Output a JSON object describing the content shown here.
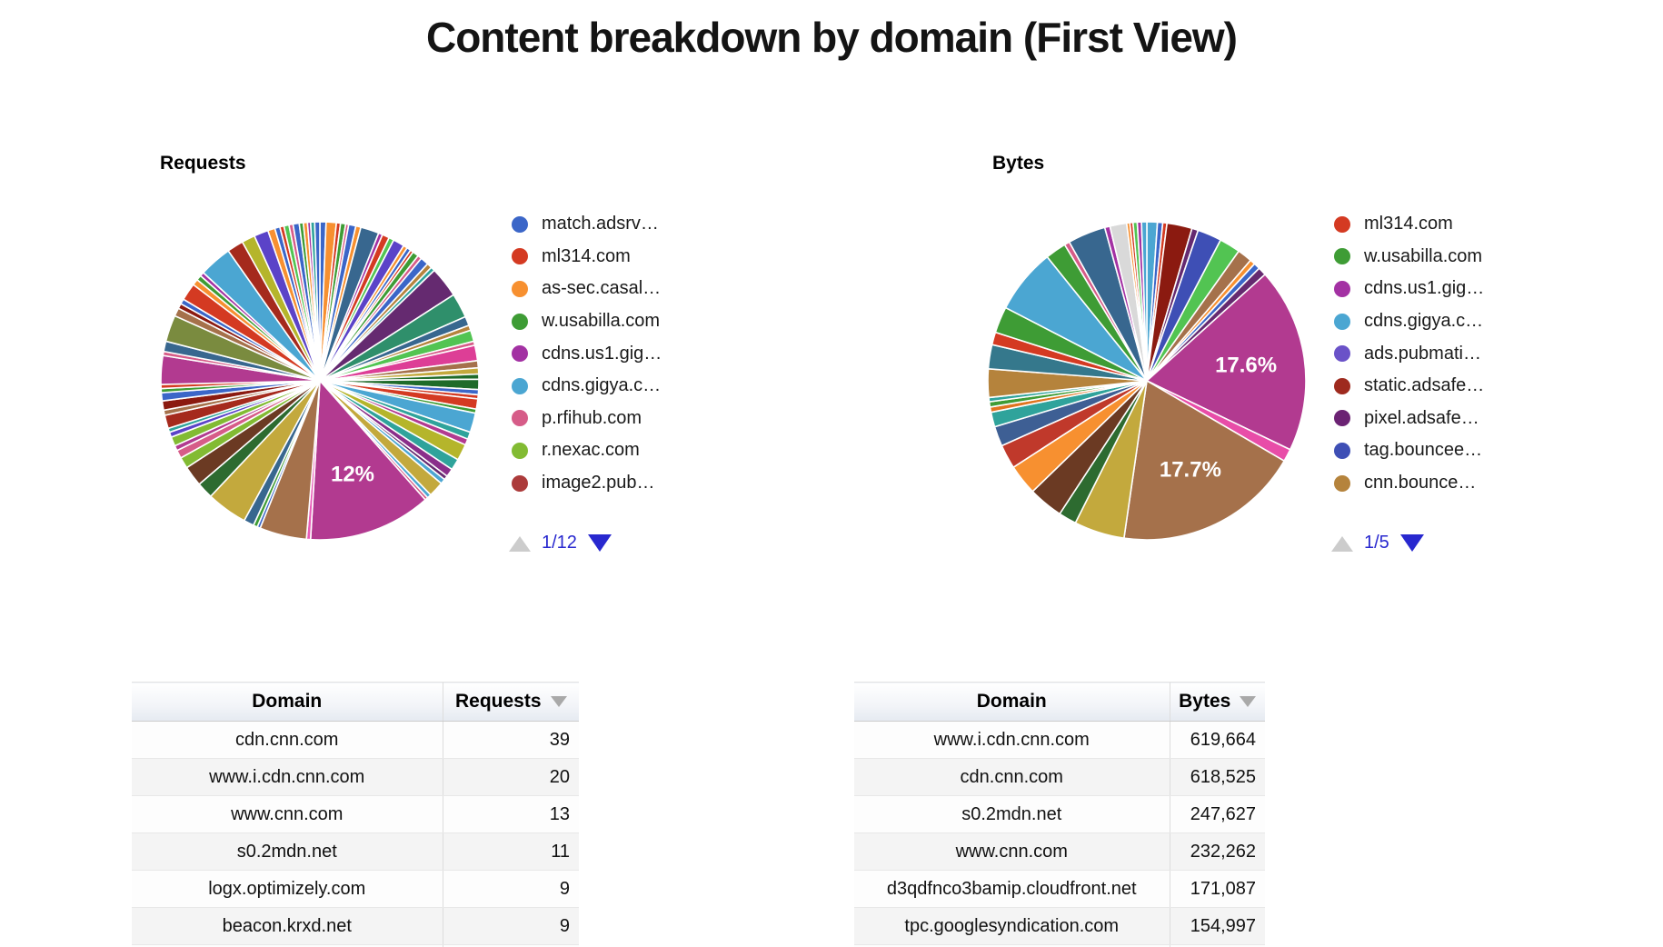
{
  "title": "Content breakdown by domain (First View)",
  "chart_data": [
    {
      "type": "pie",
      "title": "Requests",
      "labeled_slices": [
        {
          "label": "12%",
          "value_pct": 12
        }
      ],
      "legend": {
        "page": "1/12",
        "items": [
          {
            "label": "match.adsrv…",
            "color": "#3B66C8"
          },
          {
            "label": "ml314.com",
            "color": "#D43A22"
          },
          {
            "label": "as-sec.casal…",
            "color": "#F79030"
          },
          {
            "label": "w.usabilla.com",
            "color": "#3E9C35"
          },
          {
            "label": "cdns.us1.gig…",
            "color": "#A331A3"
          },
          {
            "label": "cdns.gigya.c…",
            "color": "#4BA6D2"
          },
          {
            "label": "p.rfihub.com",
            "color": "#D65C88"
          },
          {
            "label": "r.nexac.com",
            "color": "#82BB33"
          },
          {
            "label": "image2.pub…",
            "color": "#AC3B3B"
          }
        ]
      },
      "slices": [
        [
          0.6,
          "#3B66C8"
        ],
        [
          1.0,
          "#F79030"
        ],
        [
          0.4,
          "#D43A22"
        ],
        [
          0.5,
          "#3E9C35"
        ],
        [
          0.3,
          "#D65C88"
        ],
        [
          0.7,
          "#3B66C8"
        ],
        [
          0.5,
          "#F79030"
        ],
        [
          1.8,
          "#38678F"
        ],
        [
          0.4,
          "#A331A3"
        ],
        [
          0.7,
          "#D43A22"
        ],
        [
          0.5,
          "#52C452"
        ],
        [
          1.1,
          "#5B43C8"
        ],
        [
          0.4,
          "#F79030"
        ],
        [
          0.4,
          "#3B66C8"
        ],
        [
          0.3,
          "#D43A22"
        ],
        [
          0.6,
          "#3E9C35"
        ],
        [
          0.4,
          "#D65C88"
        ],
        [
          0.8,
          "#3B66C8"
        ],
        [
          0.5,
          "#B5833C"
        ],
        [
          0.4,
          "#2FA39B"
        ],
        [
          3.0,
          "#652A70"
        ],
        [
          2.4,
          "#2F8F6B"
        ],
        [
          0.9,
          "#38678F"
        ],
        [
          0.5,
          "#B5833C"
        ],
        [
          1.1,
          "#52C452"
        ],
        [
          0.4,
          "#D65C88"
        ],
        [
          1.5,
          "#DD3E96"
        ],
        [
          0.7,
          "#A5714B"
        ],
        [
          0.6,
          "#C3A93D"
        ],
        [
          0.5,
          "#1F6B2A"
        ],
        [
          1.0,
          "#1F6B2A"
        ],
        [
          0.5,
          "#3B66C8"
        ],
        [
          0.4,
          "#D43A22"
        ],
        [
          1.0,
          "#D43A22"
        ],
        [
          0.4,
          "#3E9C35"
        ],
        [
          1.9,
          "#4BA6D2"
        ],
        [
          0.7,
          "#2FA39B"
        ],
        [
          0.6,
          "#B23A90"
        ],
        [
          1.6,
          "#B5B52B"
        ],
        [
          1.1,
          "#2FA39B"
        ],
        [
          0.8,
          "#8A2E8A"
        ],
        [
          0.4,
          "#652A70"
        ],
        [
          0.5,
          "#4BA6D2"
        ],
        [
          1.5,
          "#C3A93D"
        ],
        [
          0.4,
          "#4BA6D2"
        ],
        [
          0.3,
          "#D65C88"
        ],
        [
          12.0,
          "#B23A90",
          "12%"
        ],
        [
          0.4,
          "#E85CB8"
        ],
        [
          4.6,
          "#A5714B"
        ],
        [
          0.3,
          "#3B66C8"
        ],
        [
          0.4,
          "#3E9C35"
        ],
        [
          1.0,
          "#38678F"
        ],
        [
          4.0,
          "#C3A93D"
        ],
        [
          1.6,
          "#2D6B30"
        ],
        [
          2.0,
          "#6B3A23"
        ],
        [
          1.1,
          "#82BB33"
        ],
        [
          0.8,
          "#D65C88"
        ],
        [
          0.5,
          "#B23A90"
        ],
        [
          0.9,
          "#82BB33"
        ],
        [
          0.5,
          "#5B43C8"
        ],
        [
          0.4,
          "#2FA39B"
        ],
        [
          1.3,
          "#A52A1D"
        ],
        [
          0.5,
          "#A5714B"
        ],
        [
          0.9,
          "#8B1A10"
        ],
        [
          0.8,
          "#3B66C8"
        ],
        [
          0.4,
          "#3E9C35"
        ],
        [
          0.4,
          "#D43A22"
        ],
        [
          2.8,
          "#B23A90"
        ],
        [
          0.4,
          "#D65C88"
        ],
        [
          1.0,
          "#38678F"
        ],
        [
          2.6,
          "#7A8B3F"
        ],
        [
          0.8,
          "#A5714B"
        ],
        [
          0.5,
          "#8B1A10"
        ],
        [
          0.5,
          "#3B66C8"
        ],
        [
          1.7,
          "#D43A22"
        ],
        [
          0.6,
          "#F79030"
        ],
        [
          0.5,
          "#3E9C35"
        ],
        [
          0.4,
          "#A331A3"
        ],
        [
          3.2,
          "#4BA6D2"
        ],
        [
          1.6,
          "#A52A1D"
        ],
        [
          1.3,
          "#B5B52B"
        ],
        [
          1.4,
          "#5B43C8"
        ],
        [
          0.7,
          "#F79030"
        ],
        [
          0.5,
          "#3B66C8"
        ],
        [
          0.4,
          "#D43A22"
        ],
        [
          0.5,
          "#52C452"
        ],
        [
          0.4,
          "#D65C88"
        ],
        [
          0.6,
          "#3B66C8"
        ],
        [
          0.4,
          "#3E9C35"
        ],
        [
          0.4,
          "#F79030"
        ],
        [
          0.3,
          "#A331A3"
        ],
        [
          0.4,
          "#2FA39B"
        ],
        [
          0.5,
          "#3B66C8"
        ]
      ],
      "table": {
        "headers": [
          "Domain",
          "Requests"
        ],
        "rows": [
          [
            "cdn.cnn.com",
            39
          ],
          [
            "www.i.cdn.cnn.com",
            20
          ],
          [
            "www.cnn.com",
            13
          ],
          [
            "s0.2mdn.net",
            11
          ],
          [
            "logx.optimizely.com",
            9
          ],
          [
            "beacon.krxd.net",
            9
          ]
        ]
      }
    },
    {
      "type": "pie",
      "title": "Bytes",
      "labeled_slices": [
        {
          "label": "17.6%",
          "value_pct": 17.6
        },
        {
          "label": "17.7%",
          "value_pct": 17.7
        }
      ],
      "legend": {
        "page": "1/5",
        "items": [
          {
            "label": "ml314.com",
            "color": "#D43A22"
          },
          {
            "label": "w.usabilla.com",
            "color": "#3E9C35"
          },
          {
            "label": "cdns.us1.gig…",
            "color": "#A331A3"
          },
          {
            "label": "cdns.gigya.c…",
            "color": "#4BA6D2"
          },
          {
            "label": "ads.pubmati…",
            "color": "#6A52C8"
          },
          {
            "label": "static.adsafe…",
            "color": "#9E2A1E"
          },
          {
            "label": "pixel.adsafe…",
            "color": "#6B2273"
          },
          {
            "label": "tag.bouncee…",
            "color": "#3E4FB5"
          },
          {
            "label": "cnn.bounce…",
            "color": "#B5833C"
          }
        ]
      },
      "slices": [
        [
          1.0,
          "#4BA6D2"
        ],
        [
          0.5,
          "#3B66C8"
        ],
        [
          0.4,
          "#D43A22"
        ],
        [
          2.4,
          "#8B1A10"
        ],
        [
          0.6,
          "#652A70"
        ],
        [
          2.3,
          "#3E4FB5"
        ],
        [
          2.0,
          "#52C452"
        ],
        [
          1.4,
          "#A5714B"
        ],
        [
          0.5,
          "#F79030"
        ],
        [
          0.6,
          "#3B66C8"
        ],
        [
          0.8,
          "#652A70"
        ],
        [
          17.6,
          "#B23A90",
          "17.6%"
        ],
        [
          1.2,
          "#E84DA8"
        ],
        [
          17.7,
          "#A5714B",
          "17.7%"
        ],
        [
          4.8,
          "#C3A93D"
        ],
        [
          1.7,
          "#2D6B30"
        ],
        [
          3.3,
          "#6B3A23"
        ],
        [
          2.9,
          "#F79030"
        ],
        [
          2.3,
          "#C0392B"
        ],
        [
          1.9,
          "#3E5F94"
        ],
        [
          1.4,
          "#2FA39B"
        ],
        [
          0.5,
          "#E0741F"
        ],
        [
          0.5,
          "#3E9C35"
        ],
        [
          0.4,
          "#2FA39B"
        ],
        [
          2.7,
          "#B5833C"
        ],
        [
          2.3,
          "#35788C"
        ],
        [
          1.2,
          "#D43A22"
        ],
        [
          2.5,
          "#3E9C35"
        ],
        [
          6.2,
          "#4BA6D2"
        ],
        [
          2.0,
          "#3E9C35"
        ],
        [
          0.5,
          "#D65C88"
        ],
        [
          3.6,
          "#38678F"
        ],
        [
          0.5,
          "#A331A3"
        ],
        [
          1.6,
          "#D9D9D9"
        ],
        [
          0.3,
          "#F79030"
        ],
        [
          0.3,
          "#D43A22"
        ],
        [
          0.4,
          "#52C452"
        ],
        [
          0.4,
          "#A331A3"
        ],
        [
          0.5,
          "#4BA6D2"
        ]
      ],
      "table": {
        "headers": [
          "Domain",
          "Bytes"
        ],
        "rows": [
          [
            "www.i.cdn.cnn.com",
            619664
          ],
          [
            "cdn.cnn.com",
            618525
          ],
          [
            "s0.2mdn.net",
            247627
          ],
          [
            "www.cnn.com",
            232262
          ],
          [
            "d3qdfnco3bamip.cloudfront.net",
            171087
          ],
          [
            "tpc.googlesyndication.com",
            154997
          ]
        ]
      }
    }
  ],
  "tables": {
    "requests": {
      "col_domain": "Domain",
      "col_value": "Requests",
      "rows": [
        [
          "cdn.cnn.com",
          "39"
        ],
        [
          "www.i.cdn.cnn.com",
          "20"
        ],
        [
          "www.cnn.com",
          "13"
        ],
        [
          "s0.2mdn.net",
          "11"
        ],
        [
          "logx.optimizely.com",
          "9"
        ],
        [
          "beacon.krxd.net",
          "9"
        ]
      ]
    },
    "bytes": {
      "col_domain": "Domain",
      "col_value": "Bytes",
      "rows": [
        [
          "www.i.cdn.cnn.com",
          "619,664"
        ],
        [
          "cdn.cnn.com",
          "618,525"
        ],
        [
          "s0.2mdn.net",
          "247,627"
        ],
        [
          "www.cnn.com",
          "232,262"
        ],
        [
          "d3qdfnco3bamip.cloudfront.net",
          "171,087"
        ],
        [
          "tpc.googlesyndication.com",
          "154,997"
        ]
      ]
    }
  },
  "colors": {
    "pager_active": "#2828cf",
    "pager_inactive": "#cccccc",
    "big_slice_requests": "#B23A90",
    "big_slice_bytes_1": "#B23A90",
    "big_slice_bytes_2": "#A5714B"
  }
}
